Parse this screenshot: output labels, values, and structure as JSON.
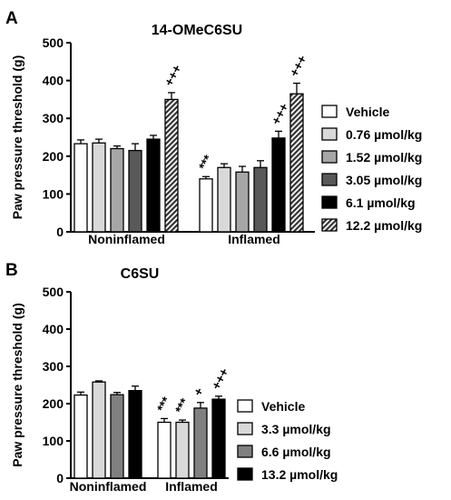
{
  "chart_data": [
    {
      "panel_label": "A",
      "type": "bar",
      "title": "14-OMeC6SU",
      "ylabel": "Paw pressure threshold (g)",
      "ylim": [
        0,
        500
      ],
      "yticks": [
        "0",
        "100",
        "200",
        "300",
        "400",
        "500"
      ],
      "categories": [
        "Noninflamed",
        "Inflamed"
      ],
      "series": [
        {
          "name": "Vehicle",
          "values": [
            233,
            140
          ],
          "errors": [
            10,
            6
          ],
          "fill": "#ffffff",
          "pattern": "none",
          "marks": [
            "",
            "***"
          ]
        },
        {
          "name": "0.76 µmol/kg",
          "values": [
            235,
            170
          ],
          "errors": [
            10,
            10
          ],
          "fill": "#d9d9d9",
          "pattern": "none",
          "marks": [
            "",
            ""
          ]
        },
        {
          "name": "1.52 µmol/kg",
          "values": [
            220,
            158
          ],
          "errors": [
            7,
            15
          ],
          "fill": "#a6a6a6",
          "pattern": "none",
          "marks": [
            "",
            ""
          ]
        },
        {
          "name": "3.05 µmol/kg",
          "values": [
            215,
            170
          ],
          "errors": [
            18,
            18
          ],
          "fill": "#595959",
          "pattern": "none",
          "marks": [
            "",
            ""
          ]
        },
        {
          "name": "6.1 µmol/kg",
          "values": [
            245,
            248
          ],
          "errors": [
            10,
            18
          ],
          "fill": "#000000",
          "pattern": "none",
          "marks": [
            "",
            "+++"
          ]
        },
        {
          "name": "12.2 µmol/kg",
          "values": [
            350,
            365
          ],
          "errors": [
            18,
            28
          ],
          "fill": "#555555",
          "pattern": "hatch",
          "marks": [
            "+++",
            "+++"
          ]
        }
      ],
      "legend_position": "right"
    },
    {
      "panel_label": "B",
      "type": "bar",
      "title": "C6SU",
      "ylabel": "Paw pressure threshold (g)",
      "ylim": [
        0,
        500
      ],
      "yticks": [
        "0",
        "100",
        "200",
        "300",
        "400",
        "500"
      ],
      "categories": [
        "Noninflamed",
        "Inflamed"
      ],
      "series": [
        {
          "name": "Vehicle",
          "values": [
            223,
            150
          ],
          "errors": [
            8,
            10
          ],
          "fill": "#ffffff",
          "pattern": "none",
          "marks": [
            "",
            "***"
          ]
        },
        {
          "name": "3.3 µmol/kg",
          "values": [
            258,
            150
          ],
          "errors": [
            3,
            6
          ],
          "fill": "#d9d9d9",
          "pattern": "none",
          "marks": [
            "",
            "***"
          ]
        },
        {
          "name": "6.6 µmol/kg",
          "values": [
            224,
            188
          ],
          "errors": [
            6,
            15
          ],
          "fill": "#808080",
          "pattern": "none",
          "marks": [
            "",
            "+"
          ]
        },
        {
          "name": "13.2 µmol/kg",
          "values": [
            235,
            212
          ],
          "errors": [
            12,
            8
          ],
          "fill": "#000000",
          "pattern": "none",
          "marks": [
            "",
            "+++"
          ]
        }
      ],
      "legend_position": "right"
    }
  ]
}
